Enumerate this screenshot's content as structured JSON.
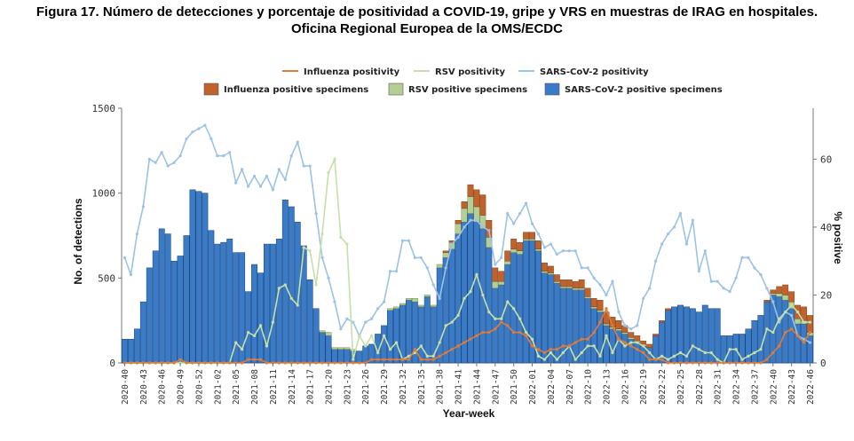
{
  "title": {
    "line1": "Figura 17. Número de detecciones y porcentaje de positividad a COVID-19, gripe y VRS en muestras de IRAG en hospitales.",
    "line2": "Oficina Regional Europea de la OMS/ECDC"
  },
  "colors": {
    "sars_bar": "#3a7bc8",
    "flu_bar": "#c0622b",
    "rsv_bar": "#b4cf96",
    "sars_line": "#9cc3e6",
    "flu_line": "#e07b39",
    "rsv_line": "#c5e0a8",
    "axis": "#777777"
  },
  "chart_data": {
    "type": "bar",
    "title": "",
    "xlabel": "Year-week",
    "ylabel": "No. of detections",
    "y2label": "% positive",
    "ylim": [
      0,
      1500
    ],
    "y2lim": [
      0,
      75
    ],
    "yticks": [
      0,
      500,
      1000,
      1500
    ],
    "y2ticks": [
      0,
      20,
      40,
      60
    ],
    "legend": {
      "lines": [
        "Influenza positivity",
        "RSV positivity",
        "SARS-CoV-2 positivity"
      ],
      "bars": [
        "Influenza positive specimens",
        "RSV positive specimens",
        "SARS-CoV-2 positive specimens"
      ]
    },
    "tick_labels": [
      "2020-40",
      "2020-43",
      "2020-46",
      "2020-49",
      "2020-52",
      "2021-02",
      "2021-05",
      "2021-08",
      "2021-11",
      "2021-14",
      "2021-17",
      "2021-20",
      "2021-23",
      "2021-26",
      "2021-29",
      "2021-32",
      "2021-35",
      "2021-38",
      "2021-41",
      "2021-44",
      "2021-47",
      "2021-50",
      "2022-01",
      "2022-04",
      "2022-07",
      "2022-10",
      "2022-13",
      "2022-16",
      "2022-19",
      "2022-22",
      "2022-25",
      "2022-28",
      "2022-31",
      "2022-34",
      "2022-37",
      "2022-40",
      "2022-43",
      "2022-46"
    ],
    "sars_bars": [
      140,
      140,
      200,
      360,
      560,
      660,
      790,
      760,
      600,
      630,
      750,
      1020,
      1010,
      1000,
      780,
      700,
      710,
      730,
      650,
      650,
      420,
      580,
      530,
      700,
      700,
      730,
      960,
      920,
      830,
      690,
      490,
      320,
      180,
      160,
      80,
      80,
      80,
      70,
      70,
      100,
      110,
      170,
      220,
      310,
      320,
      340,
      370,
      360,
      330,
      390,
      330,
      560,
      620,
      670,
      760,
      830,
      880,
      830,
      790,
      680,
      440,
      460,
      580,
      650,
      640,
      720,
      720,
      660,
      530,
      520,
      470,
      440,
      440,
      430,
      430,
      380,
      320,
      300,
      220,
      200,
      190,
      170,
      140,
      120,
      100,
      90,
      160,
      240,
      310,
      330,
      340,
      330,
      320,
      300,
      340,
      320,
      320,
      160,
      160,
      170,
      170,
      200,
      250,
      280,
      360,
      400,
      390,
      370,
      320,
      230,
      230,
      160
    ],
    "rsv_bars": [
      0,
      0,
      0,
      0,
      0,
      0,
      0,
      0,
      0,
      0,
      0,
      0,
      0,
      0,
      0,
      0,
      0,
      0,
      0,
      0,
      0,
      0,
      0,
      0,
      0,
      0,
      0,
      0,
      0,
      0,
      0,
      0,
      10,
      20,
      10,
      10,
      10,
      10,
      0,
      0,
      0,
      0,
      0,
      10,
      10,
      10,
      10,
      20,
      10,
      10,
      10,
      20,
      30,
      40,
      60,
      80,
      100,
      90,
      80,
      60,
      40,
      20,
      20,
      20,
      20,
      10,
      10,
      10,
      10,
      10,
      10,
      10,
      10,
      10,
      10,
      10,
      10,
      10,
      10,
      10,
      10,
      10,
      10,
      10,
      10,
      0,
      0,
      0,
      0,
      0,
      0,
      0,
      0,
      0,
      0,
      0,
      0,
      0,
      0,
      0,
      0,
      0,
      0,
      0,
      0,
      10,
      20,
      30,
      40,
      30,
      20,
      20
    ],
    "flu_bars": [
      0,
      0,
      0,
      0,
      0,
      0,
      0,
      0,
      0,
      0,
      0,
      0,
      0,
      0,
      0,
      0,
      0,
      0,
      0,
      0,
      0,
      0,
      0,
      0,
      0,
      0,
      0,
      0,
      0,
      0,
      0,
      0,
      0,
      0,
      0,
      0,
      0,
      0,
      0,
      0,
      0,
      0,
      0,
      0,
      0,
      0,
      0,
      0,
      0,
      0,
      0,
      0,
      10,
      10,
      20,
      40,
      70,
      100,
      120,
      100,
      80,
      60,
      60,
      60,
      50,
      40,
      40,
      50,
      50,
      40,
      40,
      40,
      40,
      40,
      50,
      50,
      50,
      60,
      70,
      60,
      50,
      40,
      30,
      30,
      20,
      20,
      10,
      10,
      10,
      0,
      0,
      0,
      0,
      0,
      0,
      0,
      0,
      0,
      0,
      0,
      0,
      0,
      0,
      0,
      10,
      20,
      40,
      60,
      60,
      80,
      80,
      100
    ],
    "sars_positivity": [
      31,
      26,
      38,
      46,
      60,
      59,
      62,
      58,
      59,
      61,
      66,
      68,
      69,
      70,
      66,
      61,
      61,
      62,
      53,
      57,
      52,
      55,
      52,
      55,
      51,
      57,
      54,
      61,
      65,
      58,
      58,
      44,
      31,
      25,
      18,
      10,
      13,
      12,
      8,
      12,
      13,
      16,
      18,
      27,
      27,
      36,
      36,
      31,
      31,
      28,
      23,
      19,
      28,
      35,
      37,
      40,
      42,
      42,
      40,
      39,
      29,
      31,
      44,
      41,
      44,
      47,
      41,
      38,
      34,
      35,
      32,
      33,
      33,
      33,
      28,
      28,
      25,
      23,
      20,
      24,
      15,
      11,
      10,
      11,
      19,
      22,
      30,
      35,
      38,
      40,
      44,
      35,
      42,
      27,
      33,
      24,
      24,
      22,
      21,
      25,
      31,
      31,
      28,
      26,
      22,
      18,
      12,
      15,
      14,
      8,
      7,
      6
    ],
    "rsv_positivity": [
      0,
      0,
      0,
      0,
      0,
      0,
      0,
      0,
      0,
      0,
      0,
      0,
      0,
      0,
      0,
      0,
      0,
      0,
      6,
      4,
      9,
      8,
      11,
      5,
      12,
      22,
      23,
      19,
      17,
      34,
      33,
      23,
      38,
      56,
      60,
      37,
      35,
      1,
      8,
      5,
      8,
      3,
      8,
      4,
      6,
      1,
      2,
      3,
      5,
      2,
      2,
      6,
      11,
      12,
      14,
      19,
      21,
      26,
      20,
      15,
      13,
      13,
      18,
      16,
      13,
      9,
      7,
      2,
      1,
      3,
      1,
      3,
      5,
      1,
      3,
      5,
      5,
      2,
      8,
      3,
      7,
      5,
      6,
      6,
      5,
      3,
      1,
      2,
      1,
      2,
      3,
      2,
      5,
      4,
      3,
      3,
      1,
      0,
      4,
      4,
      1,
      2,
      3,
      4,
      10,
      9,
      13,
      15,
      17,
      15,
      12,
      12
    ],
    "flu_positivity": [
      0,
      0,
      0,
      0,
      0,
      0,
      0,
      0,
      0,
      1,
      0,
      0,
      0,
      0,
      0,
      0,
      0,
      0,
      0,
      0,
      1,
      1,
      1,
      0,
      0,
      0,
      0,
      0,
      0,
      0,
      0,
      0,
      0,
      0,
      0,
      0,
      0,
      0,
      0,
      0,
      1,
      1,
      1,
      1,
      1,
      1,
      1,
      4,
      1,
      1,
      1,
      2,
      3,
      4,
      5,
      6,
      7,
      8,
      9,
      9,
      10,
      12,
      11,
      9,
      9,
      8,
      5,
      4,
      3,
      4,
      4,
      5,
      5,
      6,
      7,
      7,
      9,
      12,
      16,
      11,
      7,
      6,
      5,
      4,
      3,
      1,
      1,
      1,
      0,
      0,
      0,
      0,
      0,
      0,
      0,
      0,
      0,
      0,
      0,
      0,
      0,
      0,
      0,
      0,
      1,
      3,
      5,
      9,
      10,
      8,
      6,
      9
    ]
  }
}
